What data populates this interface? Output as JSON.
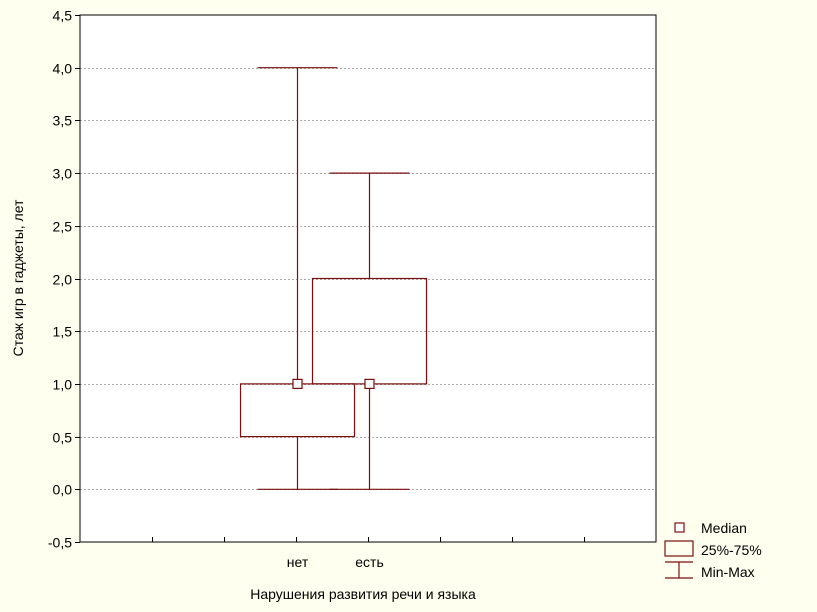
{
  "chart_data": {
    "type": "box",
    "categories": [
      "нет",
      "есть"
    ],
    "boxes": [
      {
        "category": "нет",
        "min": 0.0,
        "q1": 0.5,
        "median": 1.0,
        "q3": 1.0,
        "max": 4.0
      },
      {
        "category": "есть",
        "min": 0.0,
        "q1": 1.0,
        "median": 1.0,
        "q3": 2.0,
        "max": 3.0
      }
    ],
    "title": "",
    "xlabel": "Нарушения развития речи и языка",
    "ylabel": "Стаж игр в гаджеты, лет",
    "ylim": [
      -0.5,
      4.5
    ],
    "yticks": [
      -0.5,
      0.0,
      0.5,
      1.0,
      1.5,
      2.0,
      2.5,
      3.0,
      3.5,
      4.0,
      4.5
    ],
    "ytick_labels": [
      "-0,5",
      "0,0",
      "0,5",
      "1,0",
      "1,5",
      "2,0",
      "2,5",
      "3,0",
      "3,5",
      "4,0",
      "4,5"
    ],
    "grid": true,
    "legend": {
      "position": "bottom-right",
      "entries": [
        "Median",
        "25%-75%",
        "Min-Max"
      ]
    },
    "colors": {
      "box": "#7a0f0f",
      "grid": "#a9a9a9",
      "background": "#fffff0",
      "plot_background": "#ffffff"
    }
  }
}
